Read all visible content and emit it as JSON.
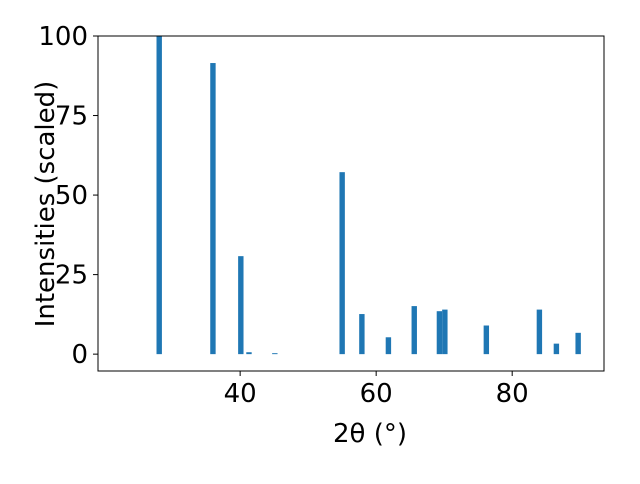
{
  "chart_data": {
    "type": "bar",
    "x": [
      28.1,
      36.0,
      40.1,
      41.3,
      45.1,
      55.0,
      57.9,
      61.8,
      65.6,
      69.3,
      70.1,
      76.2,
      84.0,
      86.5,
      89.7
    ],
    "values": [
      100,
      91.5,
      30.8,
      0.6,
      0.3,
      57.2,
      12.6,
      5.3,
      15.1,
      13.5,
      14,
      9,
      14,
      3.3,
      6.7
    ],
    "color": "#1f77b4",
    "xlabel": "2θ (°)",
    "ylabel": "Intensities (scaled)",
    "xlim": [
      19.1,
      93.5
    ],
    "ylim": [
      -5.3,
      100
    ],
    "xticks": [
      40,
      60,
      80
    ],
    "yticks": [
      0,
      25,
      50,
      75,
      100
    ]
  }
}
